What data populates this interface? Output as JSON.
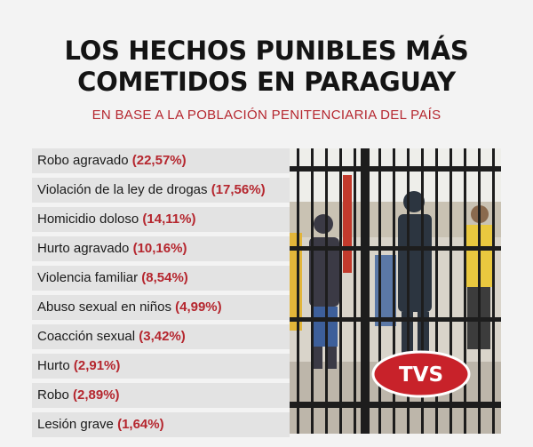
{
  "header": {
    "title_line1": "LOS HECHOS PUNIBLES MÁS",
    "title_line2": "COMETIDOS EN PARAGUAY",
    "subtitle": "EN BASE A LA POBLACIÓN PENITENCIARIA DEL PAÍS"
  },
  "chart_data": {
    "type": "table",
    "title": "LOS HECHOS PUNIBLES MÁS COMETIDOS EN PARAGUAY",
    "subtitle": "EN BASE A LA POBLACIÓN PENITENCIARIA DEL PAÍS",
    "categories": [
      "Robo agravado",
      "Violación de la ley de drogas",
      "Homicidio doloso",
      "Hurto agravado",
      "Violencia familiar",
      "Abuso sexual en niños",
      "Coacción sexual",
      "Hurto",
      "Robo",
      "Lesión grave"
    ],
    "value_labels": [
      "(22,57%)",
      "(17,56%)",
      "(14,11%)",
      "(10,16%)",
      "(8,54%)",
      "(4,99%)",
      "(3,42%)",
      "(2,91%)",
      "(2,89%)",
      "(1,64%)"
    ],
    "values": [
      22.57,
      17.56,
      14.11,
      10.16,
      8.54,
      4.99,
      3.42,
      2.91,
      2.89,
      1.64
    ],
    "unit": "%"
  },
  "colors": {
    "accent": "#b5262e",
    "title": "#141414",
    "row_background": "#e3e3e3",
    "page_background": "#f3f3f3"
  },
  "photo": {
    "description_icon": "prison-bars-photo-icon",
    "logo_text": "TVS"
  }
}
